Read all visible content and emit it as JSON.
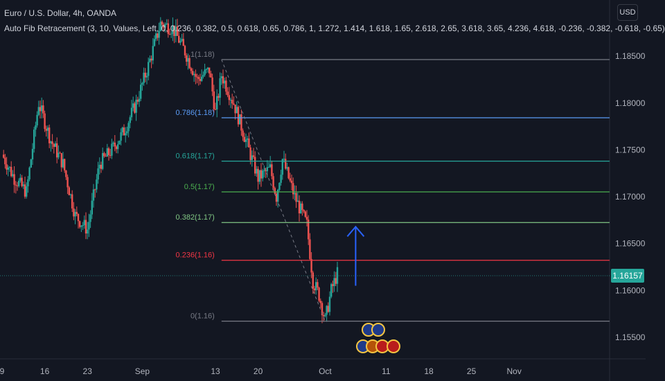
{
  "header": {
    "symbol_title": "Euro / U.S. Dollar, 4h, OANDA",
    "indicator_title": "Auto Fib Retracement (3, 10, Values, Left, 0, 0.236, 0.382, 0.5, 0.618, 0.65, 0.786, 1, 1.272, 1.414, 1.618, 1.65, 2.618, 2.65, 3.618, 3.65, 4.236, 4.618, -0.236, -0.382, -0.618, -0.65)"
  },
  "currency_button": "USD",
  "colors": {
    "background": "#131722",
    "candle_up": "#26a69a",
    "candle_down": "#ef5350",
    "arrow": "#2962ff",
    "price_badge": "#26a69a"
  },
  "chart_data": {
    "type": "candlestick",
    "title": "Euro / U.S. Dollar, 4h, OANDA",
    "y_range": [
      1.1527,
      1.191
    ],
    "y_ticks": [
      "1.18500",
      "1.18000",
      "1.17500",
      "1.17000",
      "1.16500",
      "1.16000",
      "1.15500"
    ],
    "x_ticks": [
      "9",
      "16",
      "23",
      "Sep",
      "13",
      "20",
      "Oct",
      "11",
      "18",
      "25",
      "Nov"
    ],
    "last_price": "1.16157",
    "last_price_value": 1.16157,
    "price_path": [
      {
        "date": "Aug 9",
        "price": 1.1745
      },
      {
        "date": "Aug 11",
        "price": 1.172
      },
      {
        "date": "Aug 13",
        "price": 1.1705
      },
      {
        "date": "Aug 15",
        "price": 1.18
      },
      {
        "date": "Aug 17",
        "price": 1.176
      },
      {
        "date": "Aug 19",
        "price": 1.1735
      },
      {
        "date": "Aug 21",
        "price": 1.168
      },
      {
        "date": "Aug 23",
        "price": 1.1665
      },
      {
        "date": "Aug 25",
        "price": 1.1735
      },
      {
        "date": "Aug 27",
        "price": 1.175
      },
      {
        "date": "Aug 29",
        "price": 1.177
      },
      {
        "date": "Aug 31",
        "price": 1.18
      },
      {
        "date": "Sep 2",
        "price": 1.184
      },
      {
        "date": "Sep 4",
        "price": 1.1885
      },
      {
        "date": "Sep 6",
        "price": 1.188
      },
      {
        "date": "Sep 8",
        "price": 1.1855
      },
      {
        "date": "Sep 10",
        "price": 1.1825
      },
      {
        "date": "Sep 12",
        "price": 1.1835
      },
      {
        "date": "Sep 13",
        "price": 1.179
      },
      {
        "date": "Sep 14",
        "price": 1.183
      },
      {
        "date": "Sep 16",
        "price": 1.18
      },
      {
        "date": "Sep 18",
        "price": 1.176
      },
      {
        "date": "Sep 20",
        "price": 1.172
      },
      {
        "date": "Sep 22",
        "price": 1.173
      },
      {
        "date": "Sep 23",
        "price": 1.17
      },
      {
        "date": "Sep 24",
        "price": 1.174
      },
      {
        "date": "Sep 26",
        "price": 1.17
      },
      {
        "date": "Sep 28",
        "price": 1.167
      },
      {
        "date": "Sep 29",
        "price": 1.161
      },
      {
        "date": "Sep 30",
        "price": 1.1595
      },
      {
        "date": "Oct 1",
        "price": 1.1568
      },
      {
        "date": "Oct 2",
        "price": 1.16
      },
      {
        "date": "Oct 3",
        "price": 1.1618
      }
    ],
    "fib_levels": [
      {
        "label": "0.786(1.18)",
        "value": 1.17843,
        "color": "#5b9cf6"
      },
      {
        "label": "0.618(1.17)",
        "value": 1.1738,
        "color": "#26a69a"
      },
      {
        "label": "0.5(1.17)",
        "value": 1.17052,
        "color": "#4caf50"
      },
      {
        "label": "0.382(1.17)",
        "value": 1.16725,
        "color": "#81c784"
      },
      {
        "label": "0.236(1.16)",
        "value": 1.16322,
        "color": "#f23645"
      },
      {
        "label": "0(1.16)",
        "value": 1.15672,
        "color": "#787b86"
      }
    ],
    "fib_top": {
      "label": "1(1.18)",
      "value": 1.18464,
      "color": "#787b86"
    },
    "fib_range": {
      "start": "Sep 14",
      "end": "Nov 20"
    },
    "trend_line": {
      "from": {
        "date": "Sep 14",
        "price": 1.18464
      },
      "to": {
        "date": "Oct 1",
        "price": 1.15672
      }
    },
    "arrow": {
      "date": "Oct 6",
      "from_price": 1.1605,
      "to_price": 1.1668
    }
  }
}
